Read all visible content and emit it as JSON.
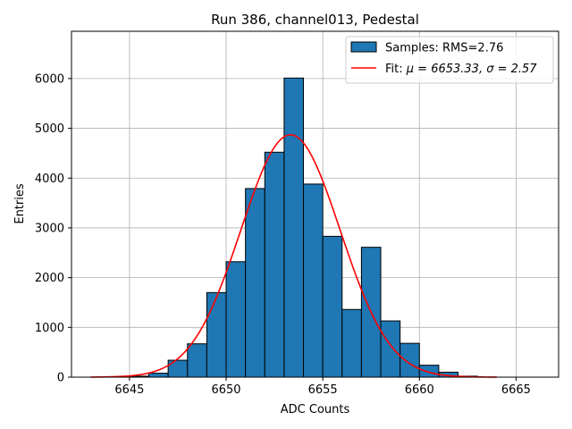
{
  "chart_data": {
    "type": "bar",
    "title": "Run 386, channel013, Pedestal",
    "xlabel": "ADC Counts",
    "ylabel": "Entries",
    "xlim": [
      6642,
      6667.2
    ],
    "ylim": [
      0,
      6950
    ],
    "grid": true,
    "legend_position": "top-right",
    "bin_edges": [
      6643,
      6644,
      6645,
      6646,
      6647,
      6648,
      6649,
      6650,
      6651,
      6652,
      6653,
      6654,
      6655,
      6656,
      6657,
      6658,
      6659,
      6660,
      6661,
      6662,
      6663,
      6664
    ],
    "x_ticks": [
      6645,
      6650,
      6655,
      6660,
      6665
    ],
    "x_tick_labels": [
      "6645",
      "6650",
      "6655",
      "6660",
      "6665"
    ],
    "y_ticks": [
      0,
      1000,
      2000,
      3000,
      4000,
      5000,
      6000
    ],
    "y_tick_labels": [
      "0",
      "1000",
      "2000",
      "3000",
      "4000",
      "5000",
      "6000"
    ],
    "series": [
      {
        "name": "Samples: RMS=2.76",
        "kind": "histogram",
        "color": "#1f77b4",
        "values": [
          0,
          10,
          20,
          80,
          340,
          670,
          1700,
          2320,
          3790,
          4520,
          6010,
          3880,
          2830,
          1360,
          2610,
          1130,
          680,
          240,
          100,
          20,
          0
        ]
      },
      {
        "name_prefix": "Fit: ",
        "name_math": "μ = 6653.33, σ = 2.57",
        "kind": "gaussian-fit",
        "color": "#ff0000",
        "mu": 6653.33,
        "sigma": 2.57,
        "amplitude": 4870,
        "x_range": [
          6643,
          6664
        ]
      }
    ]
  }
}
